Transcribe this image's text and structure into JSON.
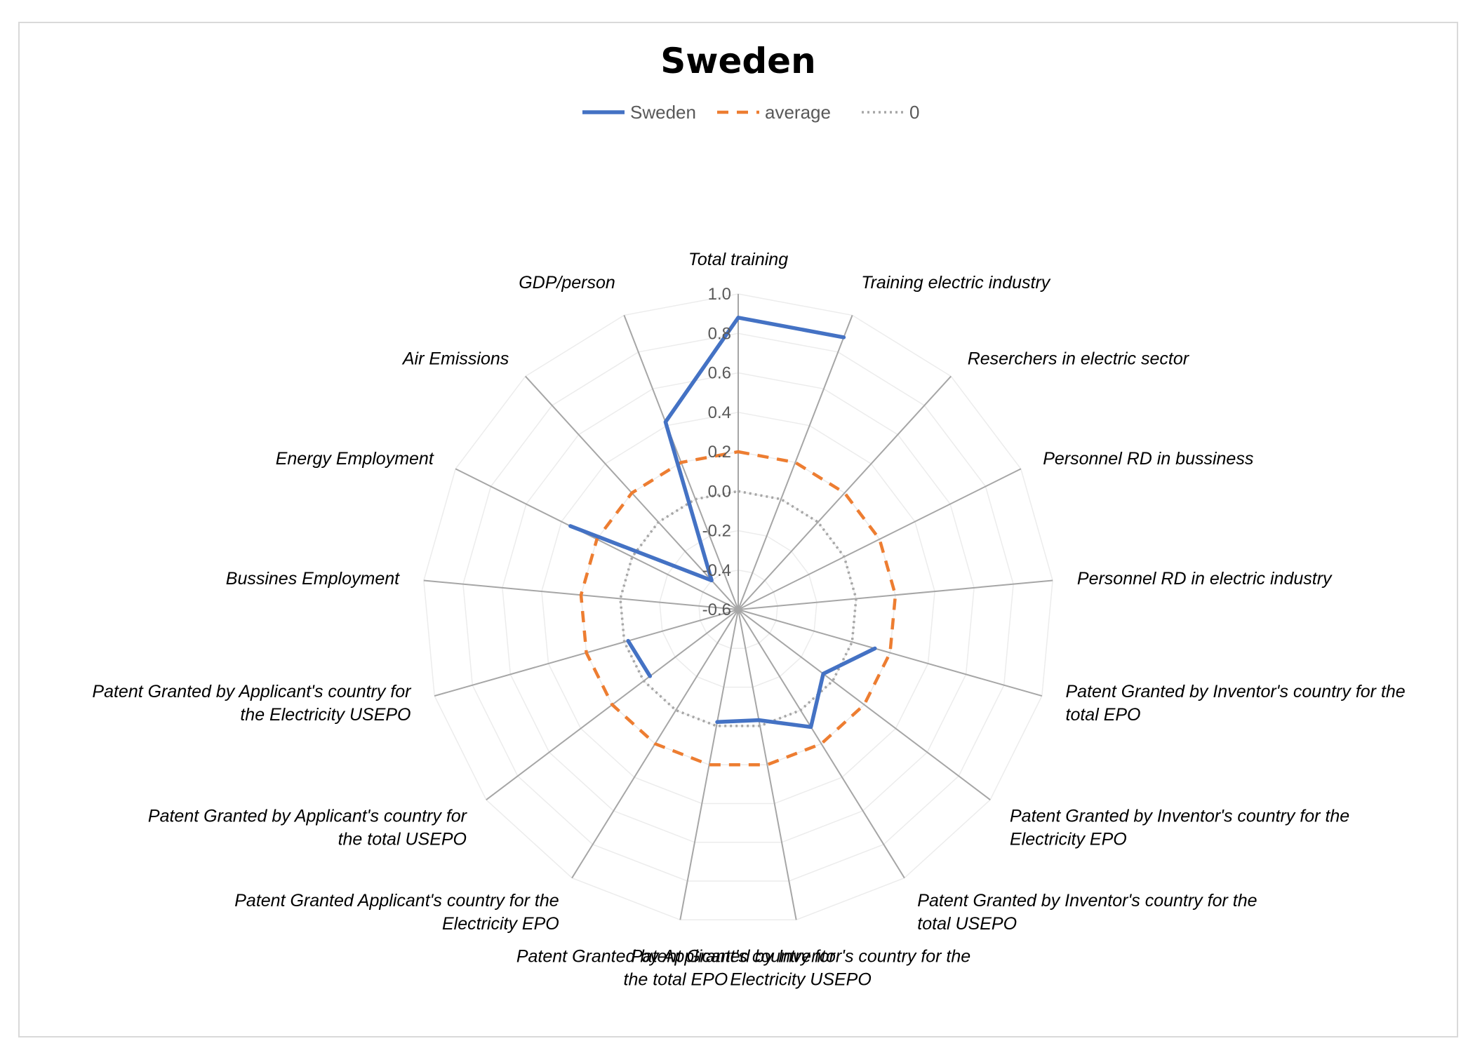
{
  "chart_data": {
    "type": "radar",
    "title": "Sweden",
    "legend_position": "top",
    "categories": [
      "Total training",
      "Training electric industry",
      "Reserchers in electric sector",
      "Personnel RD in bussiness",
      "Personnel RD in electric industry",
      "Patent Granted by Inventor's country for the total EPO",
      "Patent Granted by Inventor's country for the Electricity EPO",
      "Patent Granted by Inventor's country for the total USEPO",
      "Patent Granted by Inventor's country for the Electricity USEPO",
      "Patent Granted by Applicant's country for the total EPO",
      "Patent Granted Applicant's country for the Electricity EPO",
      "Patent Granted by Applicant's country for the total USEPO",
      "Patent Granted by Applicant's country for the Electricity USEPO",
      "Bussines Employment",
      "Energy Employment",
      "Air Emissions",
      "GDP/person"
    ],
    "rlim": [
      -0.6,
      1.0
    ],
    "ticks": [
      "1.0",
      "0.8",
      "0.6",
      "0.4",
      "0.2",
      "0.0",
      "-0.2",
      "-0.4",
      "-0.6"
    ],
    "tick_values": [
      1.0,
      0.8,
      0.6,
      0.4,
      0.2,
      0.0,
      -0.2,
      -0.4,
      -0.6
    ],
    "series": [
      {
        "name": "Sweden",
        "color": "#4472c4",
        "style": "solid",
        "values": [
          0.88,
          0.88,
          null,
          null,
          null,
          0.12,
          -0.06,
          0.1,
          -0.03,
          -0.02,
          null,
          -0.04,
          -0.02,
          null,
          0.35,
          -0.4,
          0.42
        ]
      },
      {
        "name": "average",
        "color": "#ed7d31",
        "style": "dashed",
        "values": [
          0.2,
          0.2,
          0.2,
          0.2,
          0.2,
          0.2,
          0.2,
          0.2,
          0.2,
          0.2,
          0.2,
          0.2,
          0.2,
          0.2,
          0.2,
          0.2,
          0.2
        ]
      },
      {
        "name": "0",
        "color": "#a6a6a6",
        "style": "dotted",
        "values": [
          0,
          0,
          0,
          0,
          0,
          0,
          0,
          0,
          0,
          0,
          0,
          0,
          0,
          0,
          0,
          0,
          0
        ]
      }
    ]
  }
}
